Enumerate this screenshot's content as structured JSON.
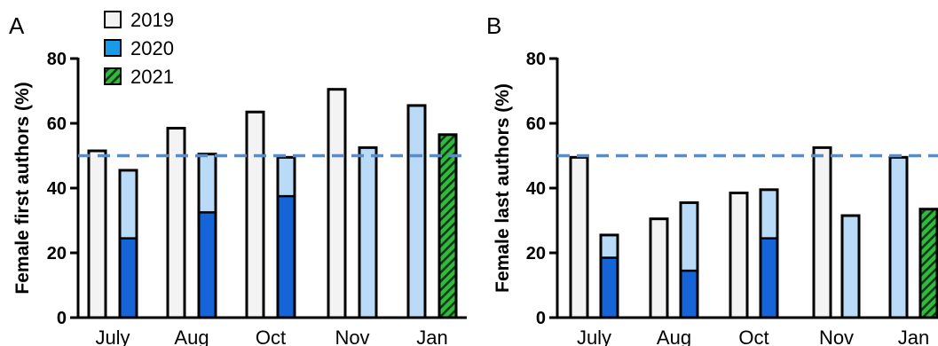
{
  "colors": {
    "y2019": "#f3f3f3",
    "y2020_light": "#b9dbf7",
    "y2020_dark": "#1565d8",
    "y2021_green": "#35b742",
    "reference": "#5b8cc4",
    "outline": "#000000"
  },
  "legend": [
    {
      "label": "2019",
      "key": "y2019"
    },
    {
      "label": "2020",
      "key": "y2020"
    },
    {
      "label": "2021",
      "key": "y2021"
    }
  ],
  "chart_data": [
    {
      "panel": "A",
      "type": "bar",
      "ylabel": "Female first authors (%)",
      "ylim": [
        0,
        80
      ],
      "yticks": [
        0,
        20,
        40,
        60,
        80
      ],
      "reference_line": 50,
      "categories": [
        "July",
        "Aug",
        "Oct",
        "Nov",
        "Jan"
      ],
      "bars": [
        {
          "category": "July",
          "year": "2019",
          "value": 51.5
        },
        {
          "category": "July",
          "year": "2020",
          "value": 45.5,
          "dark_segment": 24.5
        },
        {
          "category": "Aug",
          "year": "2019",
          "value": 58.5
        },
        {
          "category": "Aug",
          "year": "2020",
          "value": 50.5,
          "dark_segment": 32.5
        },
        {
          "category": "Oct",
          "year": "2019",
          "value": 63.5
        },
        {
          "category": "Oct",
          "year": "2020",
          "value": 49.5,
          "dark_segment": 37.5
        },
        {
          "category": "Nov",
          "year": "2019",
          "value": 70.5
        },
        {
          "category": "Nov",
          "year": "2020",
          "value": 52.5
        },
        {
          "category": "Jan",
          "year": "2020",
          "value": 65.5
        },
        {
          "category": "Jan",
          "year": "2021",
          "value": 56.5
        }
      ]
    },
    {
      "panel": "B",
      "type": "bar",
      "ylabel": "Female last authors (%)",
      "ylim": [
        0,
        80
      ],
      "yticks": [
        0,
        20,
        40,
        60,
        80
      ],
      "reference_line": 50,
      "categories": [
        "July",
        "Aug",
        "Oct",
        "Nov",
        "Jan"
      ],
      "bars": [
        {
          "category": "July",
          "year": "2019",
          "value": 49.5
        },
        {
          "category": "July",
          "year": "2020",
          "value": 25.5,
          "dark_segment": 18.5
        },
        {
          "category": "Aug",
          "year": "2019",
          "value": 30.5
        },
        {
          "category": "Aug",
          "year": "2020",
          "value": 35.5,
          "dark_segment": 14.5
        },
        {
          "category": "Oct",
          "year": "2019",
          "value": 38.5
        },
        {
          "category": "Oct",
          "year": "2020",
          "value": 39.5,
          "dark_segment": 24.5
        },
        {
          "category": "Nov",
          "year": "2019",
          "value": 52.5
        },
        {
          "category": "Nov",
          "year": "2020",
          "value": 31.5
        },
        {
          "category": "Jan",
          "year": "2020",
          "value": 49.5
        },
        {
          "category": "Jan",
          "year": "2021",
          "value": 33.5
        }
      ]
    }
  ]
}
